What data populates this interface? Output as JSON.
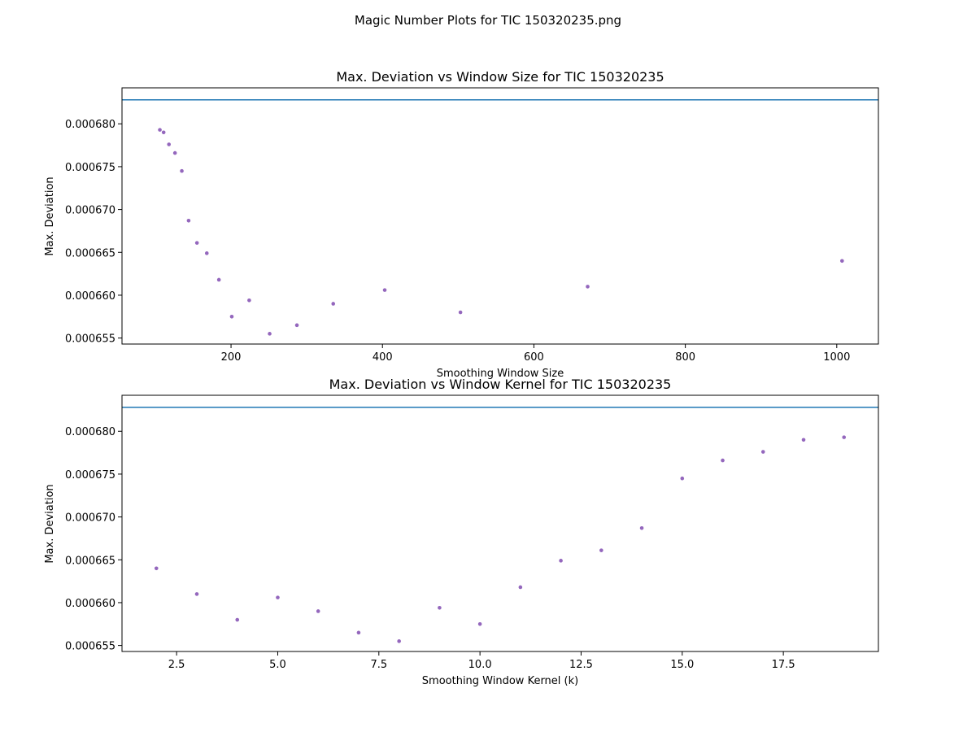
{
  "figure": {
    "suptitle": "Magic Number Plots for TIC 150320235.png"
  },
  "chart_data": [
    {
      "type": "scatter",
      "title": "Max. Deviation vs Window Size for TIC 150320235",
      "xlabel": "Smoothing Window Size",
      "ylabel": "Max. Deviation",
      "xlim": [
        56,
        1055
      ],
      "ylim": [
        0.0006543,
        0.0006842
      ],
      "x_ticks": [
        {
          "value": 200,
          "label": "200"
        },
        {
          "value": 400,
          "label": "400"
        },
        {
          "value": 600,
          "label": "600"
        },
        {
          "value": 800,
          "label": "800"
        },
        {
          "value": 1000,
          "label": "1000"
        }
      ],
      "y_ticks": [
        {
          "value": 0.000655,
          "label": "0.000655"
        },
        {
          "value": 0.00066,
          "label": "0.000660"
        },
        {
          "value": 0.000665,
          "label": "0.000665"
        },
        {
          "value": 0.00067,
          "label": "0.000670"
        },
        {
          "value": 0.000675,
          "label": "0.000675"
        },
        {
          "value": 0.00068,
          "label": "0.000680"
        }
      ],
      "hline": 0.0006828,
      "line_color": "#1f77b4",
      "point_color": "#9467bd",
      "grid": false,
      "points": [
        {
          "x": 106,
          "y": 0.0006793
        },
        {
          "x": 111,
          "y": 0.000679
        },
        {
          "x": 118,
          "y": 0.0006776
        },
        {
          "x": 126,
          "y": 0.0006766
        },
        {
          "x": 135,
          "y": 0.0006745
        },
        {
          "x": 144,
          "y": 0.0006687
        },
        {
          "x": 155,
          "y": 0.0006661
        },
        {
          "x": 168,
          "y": 0.0006649
        },
        {
          "x": 184,
          "y": 0.0006618
        },
        {
          "x": 201,
          "y": 0.0006575
        },
        {
          "x": 224,
          "y": 0.0006594
        },
        {
          "x": 251,
          "y": 0.0006555
        },
        {
          "x": 287,
          "y": 0.0006565
        },
        {
          "x": 335,
          "y": 0.000659
        },
        {
          "x": 403,
          "y": 0.0006606
        },
        {
          "x": 503,
          "y": 0.000658
        },
        {
          "x": 671,
          "y": 0.000661
        },
        {
          "x": 1007,
          "y": 0.000664
        }
      ]
    },
    {
      "type": "scatter",
      "title": "Max. Deviation vs Window Kernel for TIC 150320235",
      "xlabel": "Smoothing Window Kernel (k)",
      "ylabel": "Max. Deviation",
      "xlim": [
        1.15,
        19.85
      ],
      "ylim": [
        0.0006543,
        0.0006842
      ],
      "x_ticks": [
        {
          "value": 2.5,
          "label": "2.5"
        },
        {
          "value": 5.0,
          "label": "5.0"
        },
        {
          "value": 7.5,
          "label": "7.5"
        },
        {
          "value": 10.0,
          "label": "10.0"
        },
        {
          "value": 12.5,
          "label": "12.5"
        },
        {
          "value": 15.0,
          "label": "15.0"
        },
        {
          "value": 17.5,
          "label": "17.5"
        }
      ],
      "y_ticks": [
        {
          "value": 0.000655,
          "label": "0.000655"
        },
        {
          "value": 0.00066,
          "label": "0.000660"
        },
        {
          "value": 0.000665,
          "label": "0.000665"
        },
        {
          "value": 0.00067,
          "label": "0.000670"
        },
        {
          "value": 0.000675,
          "label": "0.000675"
        },
        {
          "value": 0.00068,
          "label": "0.000680"
        }
      ],
      "hline": 0.0006828,
      "line_color": "#1f77b4",
      "point_color": "#9467bd",
      "grid": false,
      "points": [
        {
          "x": 2,
          "y": 0.000664
        },
        {
          "x": 3,
          "y": 0.000661
        },
        {
          "x": 4,
          "y": 0.000658
        },
        {
          "x": 5,
          "y": 0.0006606
        },
        {
          "x": 6,
          "y": 0.000659
        },
        {
          "x": 7,
          "y": 0.0006565
        },
        {
          "x": 8,
          "y": 0.0006555
        },
        {
          "x": 9,
          "y": 0.0006594
        },
        {
          "x": 10,
          "y": 0.0006575
        },
        {
          "x": 11,
          "y": 0.0006618
        },
        {
          "x": 12,
          "y": 0.0006649
        },
        {
          "x": 13,
          "y": 0.0006661
        },
        {
          "x": 14,
          "y": 0.0006687
        },
        {
          "x": 15,
          "y": 0.0006745
        },
        {
          "x": 16,
          "y": 0.0006766
        },
        {
          "x": 17,
          "y": 0.0006776
        },
        {
          "x": 18,
          "y": 0.000679
        },
        {
          "x": 19,
          "y": 0.0006793
        }
      ]
    }
  ]
}
